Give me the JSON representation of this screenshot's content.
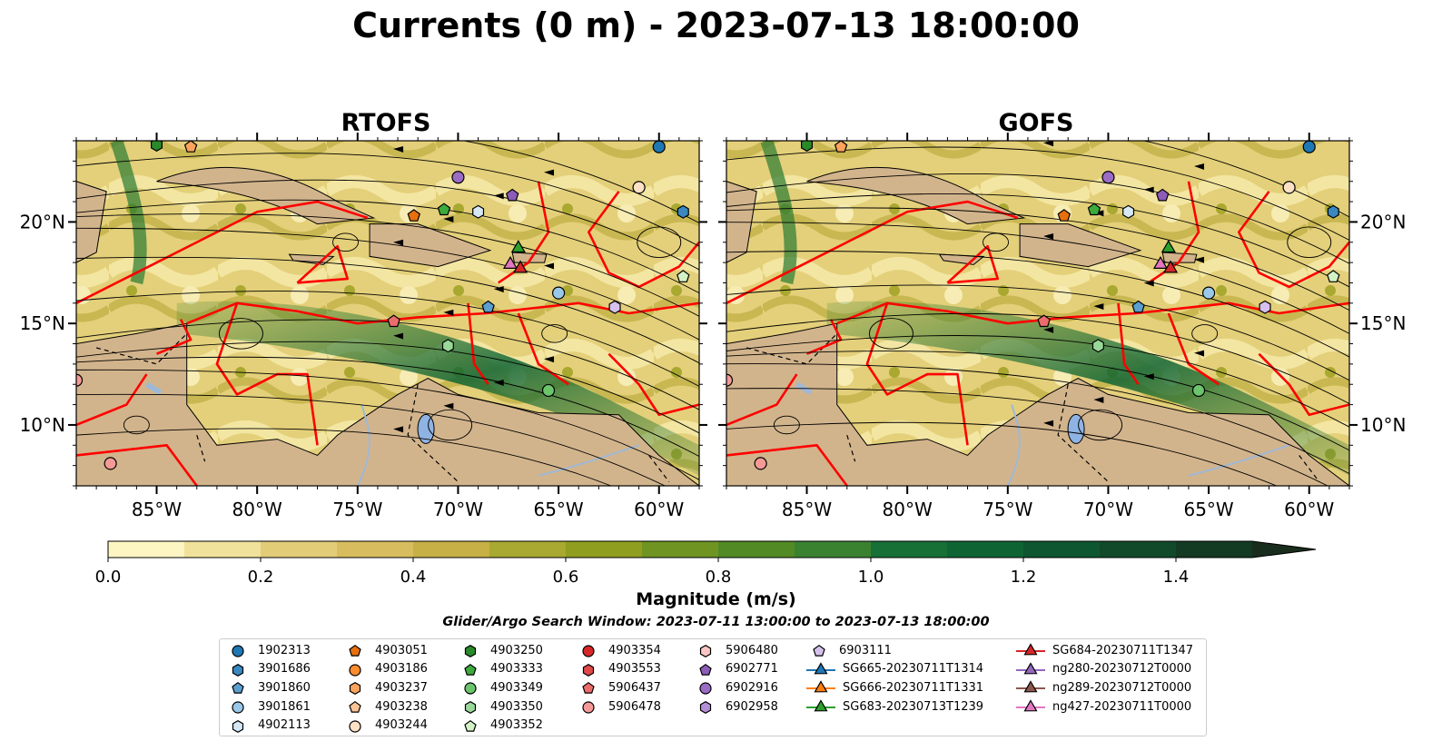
{
  "title": "Currents (0 m) - 2023-07-13 18:00:00",
  "panels": [
    {
      "title": "RTOFS"
    },
    {
      "title": "GOFS"
    }
  ],
  "chart_data": {
    "type": "heatmap",
    "title": "Currents (0 m) - 2023-07-13 18:00:00",
    "subplots": [
      "RTOFS",
      "GOFS"
    ],
    "x_ticks": [
      "85°W",
      "80°W",
      "75°W",
      "70°W",
      "65°W",
      "60°W"
    ],
    "x_values": [
      -85,
      -80,
      -75,
      -70,
      -65,
      -60
    ],
    "y_ticks": [
      "20°N",
      "15°N",
      "10°N"
    ],
    "y_values": [
      20,
      15,
      10
    ],
    "xlim": [
      -89,
      -58
    ],
    "ylim": [
      7,
      24
    ],
    "colorbar": {
      "label": "Magnitude (m/s)",
      "range": [
        0.0,
        1.5
      ],
      "extend": "max",
      "ticks": [
        "0.0",
        "0.2",
        "0.4",
        "0.6",
        "0.8",
        "1.0",
        "1.2",
        "1.4"
      ],
      "tick_values": [
        0.0,
        0.2,
        0.4,
        0.6,
        0.8,
        1.0,
        1.2,
        1.4
      ],
      "colors": [
        "#fdf6c2",
        "#f0e29a",
        "#e2cc78",
        "#d7bd5e",
        "#c7b046",
        "#a9a830",
        "#8f9e1e",
        "#6f9422",
        "#528a25",
        "#3a8230",
        "#177036",
        "#0f6434",
        "#0e5630",
        "#104a2a",
        "#133a22",
        "#192d1c"
      ]
    },
    "search_window": "Glider/Argo Search Window: 2023-07-11 13:00:00 to 2023-07-13 18:00:00"
  },
  "legend": [
    [
      {
        "label": "1902313",
        "marker": "circle",
        "color": "#1f77b4"
      },
      {
        "label": "3901686",
        "marker": "hexagon",
        "color": "#3a88bf"
      },
      {
        "label": "3901860",
        "marker": "pentagon",
        "color": "#5a9fd0"
      },
      {
        "label": "3901861",
        "marker": "circle",
        "color": "#9ac8e8"
      },
      {
        "label": "4902113",
        "marker": "hexagon",
        "color": "#d6e8f6"
      }
    ],
    [
      {
        "label": "4903051",
        "marker": "pentagon",
        "color": "#e6700e"
      },
      {
        "label": "4903186",
        "marker": "circle",
        "color": "#ff8c2e"
      },
      {
        "label": "4903237",
        "marker": "hexagon",
        "color": "#fca35c"
      },
      {
        "label": "4903238",
        "marker": "pentagon",
        "color": "#fcc494"
      },
      {
        "label": "4903244",
        "marker": "circle",
        "color": "#fde1c4"
      }
    ],
    [
      {
        "label": "4903250",
        "marker": "hexagon",
        "color": "#2a8a2a"
      },
      {
        "label": "4903333",
        "marker": "pentagon",
        "color": "#3daa3d"
      },
      {
        "label": "4903349",
        "marker": "circle",
        "color": "#6cc46c"
      },
      {
        "label": "4903350",
        "marker": "hexagon",
        "color": "#9ad89a"
      },
      {
        "label": "4903352",
        "marker": "pentagon",
        "color": "#d2f2c4"
      }
    ],
    [
      {
        "label": "4903354",
        "marker": "circle",
        "color": "#d62728"
      },
      {
        "label": "4903553",
        "marker": "hexagon",
        "color": "#e0484a"
      },
      {
        "label": "5906437",
        "marker": "pentagon",
        "color": "#ec6c6c"
      },
      {
        "label": "5906478",
        "marker": "circle",
        "color": "#f39a97"
      }
    ],
    [
      {
        "label": "5906480",
        "marker": "hexagon",
        "color": "#fbc6c4"
      },
      {
        "label": "6902771",
        "marker": "pentagon",
        "color": "#8c5cb8"
      },
      {
        "label": "6902916",
        "marker": "circle",
        "color": "#9b6cc6"
      },
      {
        "label": "6902958",
        "marker": "hexagon",
        "color": "#b38fd6"
      }
    ],
    [
      {
        "label": "6903111",
        "marker": "pentagon",
        "color": "#d6c0ec"
      },
      {
        "label": "SG665-20230711T1314",
        "marker": "triangle-line",
        "color": "#1f77b4"
      },
      {
        "label": "SG666-20230711T1331",
        "marker": "triangle-line",
        "color": "#ff7f0e"
      },
      {
        "label": "SG683-20230713T1239",
        "marker": "triangle-line",
        "color": "#2ca02c"
      }
    ],
    [
      {
        "label": "SG684-20230711T1347",
        "marker": "triangle-line",
        "color": "#d62728"
      },
      {
        "label": "ng280-20230712T0000",
        "marker": "triangle-line",
        "color": "#9467bd"
      },
      {
        "label": "ng289-20230712T0000",
        "marker": "triangle-line",
        "color": "#8c564b"
      },
      {
        "label": "ng427-20230711T0000",
        "marker": "triangle-line",
        "color": "#e377c2"
      }
    ]
  ],
  "floats": [
    {
      "lon": -85.0,
      "lat": 23.8,
      "marker": "hexagon",
      "color": "#2a8a2a"
    },
    {
      "lon": -83.3,
      "lat": 23.7,
      "marker": "pentagon",
      "color": "#fca35c"
    },
    {
      "lon": -60.0,
      "lat": 23.7,
      "marker": "circle",
      "color": "#1f77b4"
    },
    {
      "lon": -70.0,
      "lat": 22.2,
      "marker": "circle",
      "color": "#9b6cc6"
    },
    {
      "lon": -61.0,
      "lat": 21.7,
      "marker": "circle",
      "color": "#fde1c4"
    },
    {
      "lon": -67.3,
      "lat": 21.3,
      "marker": "pentagon",
      "color": "#8c5cb8"
    },
    {
      "lon": -72.2,
      "lat": 20.3,
      "marker": "pentagon",
      "color": "#e6700e"
    },
    {
      "lon": -70.7,
      "lat": 20.6,
      "marker": "pentagon",
      "color": "#3daa3d"
    },
    {
      "lon": -69.0,
      "lat": 20.5,
      "marker": "hexagon",
      "color": "#d6e8f6"
    },
    {
      "lon": -58.8,
      "lat": 20.5,
      "marker": "hexagon",
      "color": "#3a88bf"
    },
    {
      "lon": -67.0,
      "lat": 18.7,
      "marker": "triangle",
      "color": "#2ca02c"
    },
    {
      "lon": -67.4,
      "lat": 17.9,
      "marker": "triangle",
      "color": "#e377c2"
    },
    {
      "lon": -66.9,
      "lat": 17.7,
      "marker": "triangle",
      "color": "#d62728"
    },
    {
      "lon": -58.8,
      "lat": 17.3,
      "marker": "pentagon",
      "color": "#d2f2c4"
    },
    {
      "lon": -65.0,
      "lat": 16.5,
      "marker": "circle",
      "color": "#9ac8e8"
    },
    {
      "lon": -68.5,
      "lat": 15.8,
      "marker": "pentagon",
      "color": "#5a9fd0"
    },
    {
      "lon": -62.2,
      "lat": 15.8,
      "marker": "hexagon",
      "color": "#d6c0ec"
    },
    {
      "lon": -73.2,
      "lat": 15.1,
      "marker": "pentagon",
      "color": "#ec6c6c"
    },
    {
      "lon": -70.5,
      "lat": 13.9,
      "marker": "hexagon",
      "color": "#9ad89a"
    },
    {
      "lon": -65.5,
      "lat": 11.7,
      "marker": "circle",
      "color": "#6cc46c"
    },
    {
      "lon": -89.0,
      "lat": 12.2,
      "marker": "circle",
      "color": "#f39a97"
    },
    {
      "lon": -87.3,
      "lat": 8.1,
      "marker": "circle",
      "color": "#f39a97"
    }
  ]
}
